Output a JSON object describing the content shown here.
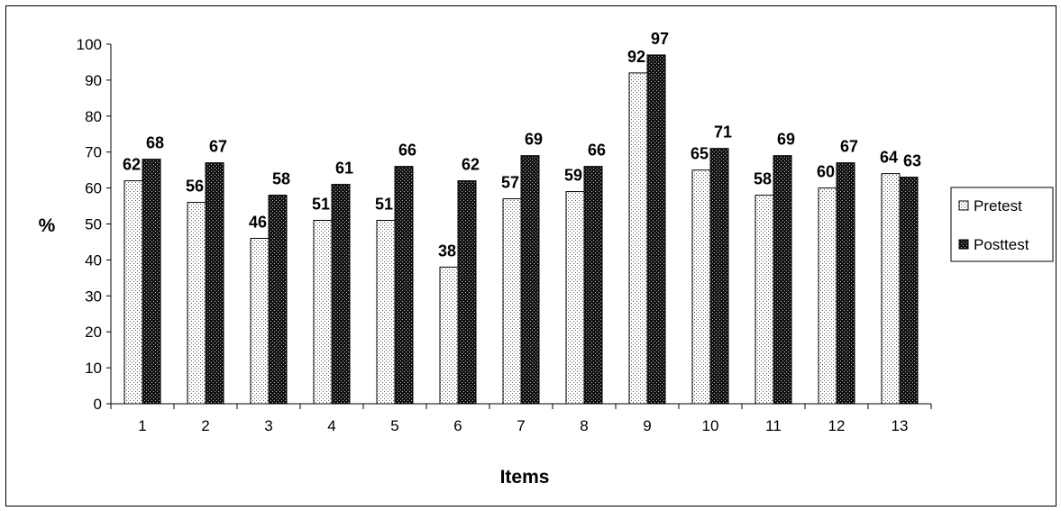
{
  "chart_data": {
    "type": "bar",
    "title": "",
    "xlabel": "Items",
    "ylabel": "%",
    "categories": [
      "1",
      "2",
      "3",
      "4",
      "5",
      "6",
      "7",
      "8",
      "9",
      "10",
      "11",
      "12",
      "13"
    ],
    "ylim": [
      0,
      100
    ],
    "ytick_step": 10,
    "grid": false,
    "legend_position": "right",
    "series": [
      {
        "name": "Pretest",
        "pattern": "light-dotted",
        "values": [
          62,
          56,
          46,
          51,
          51,
          38,
          57,
          59,
          92,
          65,
          58,
          60,
          64
        ],
        "labels": [
          "62",
          "56",
          "46",
          "51",
          "51",
          "38",
          "57",
          "59",
          "92",
          "65",
          "58",
          "60",
          "64"
        ]
      },
      {
        "name": "Posttest",
        "pattern": "dark-checkered",
        "values": [
          68,
          67,
          58,
          61,
          66,
          62,
          69,
          66,
          97,
          71,
          69,
          67,
          63
        ],
        "labels": [
          "68",
          "67",
          "58",
          "61",
          "66",
          "62",
          "69",
          "66",
          "97",
          "71",
          "69",
          "67",
          "63"
        ]
      }
    ]
  }
}
